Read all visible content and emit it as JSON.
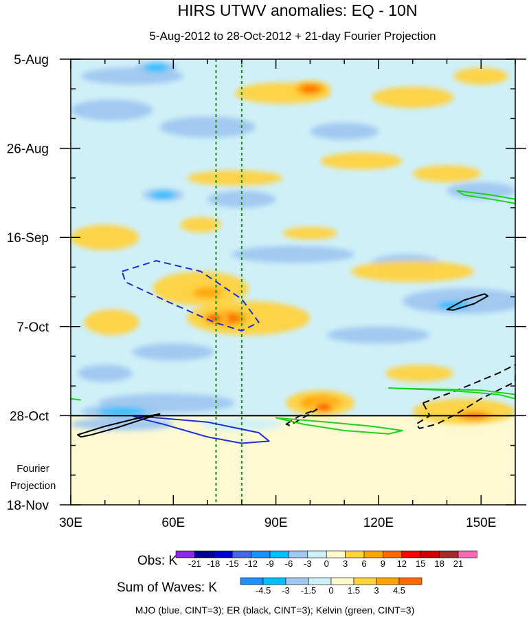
{
  "chart_data": {
    "type": "heatmap",
    "title": "HIRS UTWV anomalies: EQ - 10N",
    "subtitle": "5-Aug-2012 to 28-Oct-2012 + 21-day Fourier Projection",
    "x_ticks": [
      {
        "value": 30,
        "label": "30E"
      },
      {
        "value": 60,
        "label": "60E"
      },
      {
        "value": 90,
        "label": "90E"
      },
      {
        "value": 120,
        "label": "120E"
      },
      {
        "value": 150,
        "label": "150E"
      }
    ],
    "xlim": [
      30,
      160
    ],
    "ylim_days": [
      0,
      105
    ],
    "y_ticks": [
      {
        "day": 0,
        "label": "5-Aug"
      },
      {
        "day": 21,
        "label": "26-Aug"
      },
      {
        "day": 42,
        "label": "16-Sep"
      },
      {
        "day": 63,
        "label": "7-Oct"
      },
      {
        "day": 84,
        "label": "28-Oct"
      },
      {
        "day": 105,
        "label": "18-Nov"
      }
    ],
    "projection_line_day": 84,
    "projection_label": [
      "Fourier",
      "Projection"
    ],
    "reference_longitudes": [
      72.5,
      80
    ],
    "anomaly_blobs": [
      {
        "lon": 92,
        "day": 8,
        "rx": 14,
        "ry": 2.5,
        "value": 5
      },
      {
        "lon": 100,
        "day": 7,
        "rx": 6,
        "ry": 2,
        "value": 9
      },
      {
        "lon": 130,
        "day": 9,
        "rx": 12,
        "ry": 2.5,
        "value": 4
      },
      {
        "lon": 150,
        "day": 4,
        "rx": 8,
        "ry": 2,
        "value": 5
      },
      {
        "lon": 48,
        "day": 4,
        "rx": 15,
        "ry": 2,
        "value": -4
      },
      {
        "lon": 55,
        "day": 2,
        "rx": 6,
        "ry": 1.5,
        "value": -8
      },
      {
        "lon": 42,
        "day": 12,
        "rx": 12,
        "ry": 2.5,
        "value": -4
      },
      {
        "lon": 70,
        "day": 16,
        "rx": 14,
        "ry": 2.5,
        "value": -3
      },
      {
        "lon": 110,
        "day": 17,
        "rx": 10,
        "ry": 2,
        "value": -3
      },
      {
        "lon": 78,
        "day": 28,
        "rx": 14,
        "ry": 1.8,
        "value": 4
      },
      {
        "lon": 115,
        "day": 24,
        "rx": 12,
        "ry": 2,
        "value": 3
      },
      {
        "lon": 140,
        "day": 27,
        "rx": 10,
        "ry": 2,
        "value": 3
      },
      {
        "lon": 57,
        "day": 32,
        "rx": 6,
        "ry": 1.5,
        "value": -8
      },
      {
        "lon": 80,
        "day": 33,
        "rx": 10,
        "ry": 2,
        "value": -3
      },
      {
        "lon": 150,
        "day": 31,
        "rx": 10,
        "ry": 2,
        "value": -4
      },
      {
        "lon": 68,
        "day": 39,
        "rx": 6,
        "ry": 1.8,
        "value": 5
      },
      {
        "lon": 40,
        "day": 42,
        "rx": 10,
        "ry": 3,
        "value": 4
      },
      {
        "lon": 100,
        "day": 41,
        "rx": 8,
        "ry": 1.5,
        "value": 3
      },
      {
        "lon": 95,
        "day": 46,
        "rx": 18,
        "ry": 2,
        "value": -3
      },
      {
        "lon": 128,
        "day": 48,
        "rx": 10,
        "ry": 2,
        "value": -5
      },
      {
        "lon": 130,
        "day": 50,
        "rx": 18,
        "ry": 2.5,
        "value": 3
      },
      {
        "lon": 68,
        "day": 54,
        "rx": 14,
        "ry": 4,
        "value": 4
      },
      {
        "lon": 70,
        "day": 55,
        "rx": 7,
        "ry": 2,
        "value": 6
      },
      {
        "lon": 82,
        "day": 61,
        "rx": 18,
        "ry": 4,
        "value": 5
      },
      {
        "lon": 76,
        "day": 61,
        "rx": 8,
        "ry": 2.5,
        "value": 9
      },
      {
        "lon": 72,
        "day": 61,
        "rx": 4,
        "ry": 1.5,
        "value": 12
      },
      {
        "lon": 42,
        "day": 62,
        "rx": 8,
        "ry": 3,
        "value": 4
      },
      {
        "lon": 145,
        "day": 57,
        "rx": 18,
        "ry": 3,
        "value": -5
      },
      {
        "lon": 142,
        "day": 58,
        "rx": 8,
        "ry": 1.5,
        "value": -8
      },
      {
        "lon": 120,
        "day": 65,
        "rx": 15,
        "ry": 2,
        "value": -3
      },
      {
        "lon": 60,
        "day": 69,
        "rx": 12,
        "ry": 2,
        "value": -4
      },
      {
        "lon": 132,
        "day": 74,
        "rx": 10,
        "ry": 2,
        "value": 3
      },
      {
        "lon": 40,
        "day": 74,
        "rx": 8,
        "ry": 2,
        "value": -4
      },
      {
        "lon": 58,
        "day": 81,
        "rx": 20,
        "ry": 2.2,
        "value": -4
      },
      {
        "lon": 45,
        "day": 83,
        "rx": 12,
        "ry": 1.5,
        "value": -8
      },
      {
        "lon": 103,
        "day": 81,
        "rx": 10,
        "ry": 3,
        "value": 6
      },
      {
        "lon": 104,
        "day": 82,
        "rx": 4,
        "ry": 1.5,
        "value": 13
      },
      {
        "lon": 145,
        "day": 83,
        "rx": 15,
        "ry": 3,
        "value": 5
      },
      {
        "lon": 148,
        "day": 84,
        "rx": 7,
        "ry": 1.5,
        "value": 9
      },
      {
        "lon": 45,
        "day": 86,
        "rx": 15,
        "ry": 1.5,
        "value": -3
      },
      {
        "lon": 80,
        "day": 86,
        "rx": 12,
        "ry": 1.5,
        "value": -2
      }
    ],
    "obs_legend": {
      "label": "Obs: K",
      "ticks": [
        "-21",
        "-18",
        "-15",
        "-12",
        "-9",
        "-6",
        "-3",
        "0",
        "3",
        "6",
        "9",
        "12",
        "15",
        "18",
        "21"
      ],
      "colors": [
        "#8a2be2",
        "#00008b",
        "#0000cd",
        "#4169e1",
        "#1e90ff",
        "#00bfff",
        "#9fc7f0",
        "#cff0f8",
        "#fffacd",
        "#ffd23f",
        "#ffa500",
        "#ff6a00",
        "#ff0000",
        "#cd0000",
        "#a52a2a",
        "#ff69b4"
      ]
    },
    "waves_legend": {
      "label": "Sum of Waves: K",
      "ticks": [
        "-4.5",
        "-3",
        "-1.5",
        "0",
        "1.5",
        "3",
        "4.5"
      ],
      "colors": [
        "#1e90ff",
        "#00bfff",
        "#9fc7f0",
        "#cff0f8",
        "#fffacd",
        "#ffd23f",
        "#ffa500",
        "#ff6a00"
      ]
    },
    "wave_contours": [
      {
        "wave": "MJO",
        "color": "#1a2fcc",
        "dash": true,
        "path": [
          [
            45,
            50
          ],
          [
            55,
            47.5
          ],
          [
            68,
            50
          ],
          [
            80,
            56.5
          ],
          [
            85,
            62
          ],
          [
            80,
            64
          ],
          [
            72,
            62
          ],
          [
            58,
            57
          ],
          [
            46,
            52.5
          ]
        ]
      },
      {
        "wave": "MJO",
        "color": "#1a2fcc",
        "dash": false,
        "path": [
          [
            48,
            84
          ],
          [
            70,
            85.5
          ],
          [
            85,
            88
          ],
          [
            88,
            90
          ],
          [
            80,
            90.5
          ],
          [
            70,
            89
          ],
          [
            57,
            86
          ],
          [
            50,
            84.6
          ]
        ]
      },
      {
        "wave": "ER",
        "color": "#000000",
        "dash": false,
        "path": [
          [
            32,
            88.5
          ],
          [
            40,
            86.5
          ],
          [
            50,
            84.5
          ],
          [
            56,
            83.6
          ],
          [
            52,
            84.6
          ],
          [
            44,
            86.7
          ],
          [
            36,
            88.5
          ],
          [
            33,
            89
          ]
        ]
      },
      {
        "wave": "ER",
        "color": "#000000",
        "dash": false,
        "path": [
          [
            140,
            59
          ],
          [
            145,
            56.8
          ],
          [
            151,
            55.3
          ],
          [
            152,
            55.8
          ],
          [
            148,
            57.6
          ],
          [
            142,
            59.1
          ]
        ]
      },
      {
        "wave": "ER",
        "color": "#000000",
        "dash": true,
        "path": [
          [
            93,
            86
          ],
          [
            97,
            84
          ],
          [
            102,
            82.5
          ],
          [
            99,
            84
          ],
          [
            94,
            86.3
          ]
        ]
      },
      {
        "wave": "ER",
        "color": "#000000",
        "dash": true,
        "path": [
          [
            133,
            81
          ],
          [
            143,
            78
          ],
          [
            155,
            74
          ],
          [
            160,
            72
          ],
          [
            160,
            76
          ],
          [
            150,
            80
          ],
          [
            143,
            83.5
          ],
          [
            137,
            86
          ],
          [
            132,
            87
          ],
          [
            131,
            86
          ],
          [
            135,
            84
          ]
        ]
      },
      {
        "wave": "Kelvin",
        "color": "#22d022",
        "dash": false,
        "path": [
          [
            143,
            31
          ],
          [
            153,
            32
          ],
          [
            160,
            33
          ],
          [
            160,
            34
          ],
          [
            153,
            33
          ],
          [
            145,
            32
          ]
        ]
      },
      {
        "wave": "Kelvin",
        "color": "#22d022",
        "dash": false,
        "path": [
          [
            123,
            77.5
          ],
          [
            140,
            78
          ],
          [
            155,
            79
          ],
          [
            160,
            80
          ],
          [
            160,
            79
          ],
          [
            150,
            78
          ]
        ]
      },
      {
        "wave": "Kelvin",
        "color": "#22d022",
        "dash": false,
        "path": [
          [
            90,
            84.5
          ],
          [
            105,
            85.5
          ],
          [
            118,
            86.5
          ],
          [
            127,
            87.5
          ],
          [
            123,
            88.3
          ],
          [
            110,
            87.5
          ],
          [
            98,
            86
          ]
        ]
      },
      {
        "wave": "Kelvin",
        "color": "#22d022",
        "dash": false,
        "path": [
          [
            30,
            80
          ],
          [
            33,
            80.3
          ]
        ]
      }
    ],
    "footer_note": "MJO (blue, CINT=3); ER (black, CINT=3); Kelvin (green, CINT=3)"
  }
}
